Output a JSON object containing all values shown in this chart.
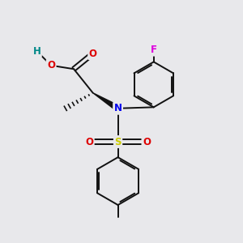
{
  "bg_color": "#e8e8eb",
  "bond_color": "#111111",
  "bond_width": 1.4,
  "atom_colors": {
    "O": "#dd0000",
    "N": "#0000ee",
    "S": "#cccc00",
    "F": "#dd00dd",
    "H": "#008888",
    "C": "#111111"
  },
  "font_size": 8.5,
  "fig_size": [
    3.0,
    3.0
  ],
  "dpi": 100
}
